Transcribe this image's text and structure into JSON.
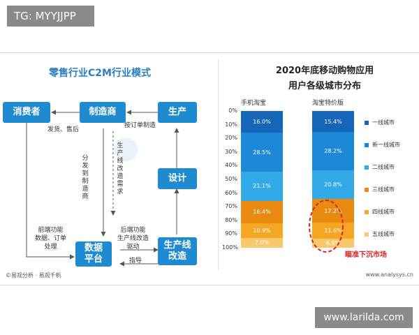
{
  "watermarks": {
    "top": "TG: MYYJJPP",
    "bottom": "www.larilda.com"
  },
  "diagram": {
    "title": "零售行业C2M行业模式",
    "boxes": {
      "consumer": "消费者",
      "manufacturer": "制造商",
      "production": "生产",
      "design": "设计",
      "data_platform": "数据\n平台",
      "production_line": "生产线\n改造"
    },
    "labels": {
      "ship_after_sales": "发货、售后",
      "order_manufacture": "按订单制造",
      "distribute_to_manufacturer": "分发到制造商",
      "production_line_demand": "生产线改造需求",
      "front_end": "前端功能\n数据、订单\n处理",
      "back_end": "后端功能\n生产线改造\n驱动",
      "guide": "指导"
    }
  },
  "chart_data": {
    "type": "bar",
    "title": "2020年底移动购物应用",
    "subtitle": "用户各级城市分布",
    "categories": [
      "手机淘宝",
      "淘宝特价版"
    ],
    "y_ticks": [
      "0%",
      "10%",
      "20%",
      "30%",
      "40%",
      "50%",
      "60%",
      "70%",
      "80%",
      "90%",
      "100%"
    ],
    "stacked": true,
    "ylim": [
      0,
      100
    ],
    "y_inverted": true,
    "legend_position": "right",
    "series": [
      {
        "name": "一线城市",
        "values": [
          16.0,
          15.4
        ],
        "labels": [
          "16.0%",
          "15.4%"
        ],
        "color": "#1565b8"
      },
      {
        "name": "新一线城市",
        "values": [
          28.5,
          28.2
        ],
        "labels": [
          "28.5%",
          "28.2%"
        ],
        "color": "#1e88d8"
      },
      {
        "name": "二线城市",
        "values": [
          21.1,
          20.8
        ],
        "labels": [
          "21.1%",
          "20.8%"
        ],
        "color": "#33aae8"
      },
      {
        "name": "三线城市",
        "values": [
          16.4,
          17.2
        ],
        "labels": [
          "16.4%",
          "17.2%"
        ],
        "color": "#e88a10"
      },
      {
        "name": "四线城市",
        "values": [
          10.9,
          11.6
        ],
        "labels": [
          "10.9%",
          "11.6%"
        ],
        "color": "#f5a623"
      },
      {
        "name": "五线城市",
        "values": [
          7.0,
          6.9
        ],
        "labels": [
          "7.0%",
          "6.9%"
        ],
        "color": "#f8c86a"
      }
    ],
    "annotation": "瞄准下沉市场",
    "source": "©易观分析 · 易观千帆",
    "website": "www.analysys.cn"
  }
}
